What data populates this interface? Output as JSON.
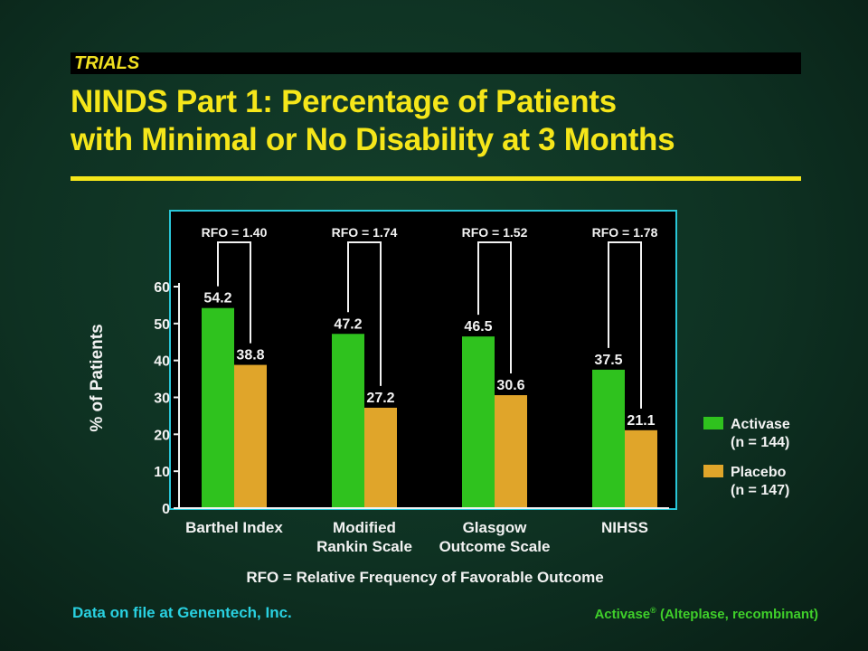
{
  "header": {
    "tag": "TRIALS",
    "title_line1": "NINDS Part 1: Percentage of Patients",
    "title_line2": "with Minimal or No Disability at 3 Months"
  },
  "chart_data": {
    "type": "bar",
    "categories": [
      [
        "Barthel Index"
      ],
      [
        "Modified",
        "Rankin Scale"
      ],
      [
        "Glasgow",
        "Outcome Scale"
      ],
      [
        "NIHSS"
      ]
    ],
    "series": [
      {
        "name": "Activase",
        "name_sub": "(n = 144)",
        "color": "#2fc21e",
        "values": [
          54.2,
          47.2,
          46.5,
          37.5
        ],
        "labels": [
          "54.2",
          "47.2",
          "46.5",
          "37.5"
        ]
      },
      {
        "name": "Placebo",
        "name_sub": "(n = 147)",
        "color": "#e0a52a",
        "values": [
          38.8,
          27.2,
          30.6,
          21.1
        ],
        "labels": [
          "38.8",
          "27.2",
          "30.6",
          "21.1"
        ]
      }
    ],
    "annotations": [
      "RFO = 1.40",
      "RFO = 1.74",
      "RFO = 1.52",
      "RFO = 1.78"
    ],
    "ylabel": "% of Patients",
    "ylim": [
      0,
      60
    ],
    "yticks": [
      "0",
      "10",
      "20",
      "30",
      "40",
      "50",
      "60"
    ],
    "note": "RFO = Relative Frequency of Favorable Outcome",
    "legend_position": "right",
    "grid": false
  },
  "footer": {
    "source": "Data on file at Genentech, Inc.",
    "product": "Activase",
    "product_mark": "®",
    "product_detail": " (Alteplase, recombinant)"
  },
  "colors": {
    "title": "#f5e61a",
    "frame": "#29c6d8",
    "text": "#f2f2f2"
  }
}
